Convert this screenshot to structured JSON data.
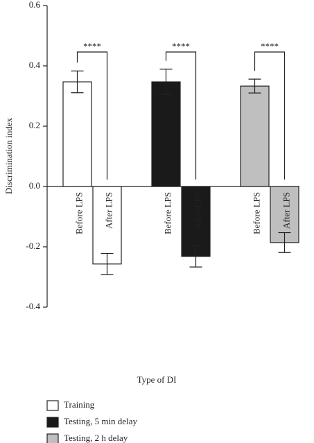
{
  "chart_data": {
    "type": "bar",
    "categories": [
      "Before LPS",
      "After LPS"
    ],
    "series": [
      {
        "name": "Training",
        "color": "#ffffff",
        "values": [
          0.347,
          -0.257
        ],
        "errors": [
          0.036,
          0.035
        ]
      },
      {
        "name": "Testing, 5 min delay",
        "color": "#1a1a1a",
        "values": [
          0.347,
          -0.232
        ],
        "errors": [
          0.042,
          0.035
        ]
      },
      {
        "name": "Testing, 2 h delay",
        "color": "#bfbfbf",
        "values": [
          0.333,
          -0.186
        ],
        "errors": [
          0.023,
          0.033
        ]
      }
    ],
    "annotations": [
      "****",
      "****",
      "****"
    ],
    "ylabel": "Discrimination index",
    "xlabel": "Type of DI",
    "ylim": [
      -0.4,
      0.6
    ],
    "yticks": [
      -0.4,
      -0.2,
      {
        "value": 0,
        "label": "0.0"
      },
      0.2,
      0.4,
      0.6
    ]
  }
}
